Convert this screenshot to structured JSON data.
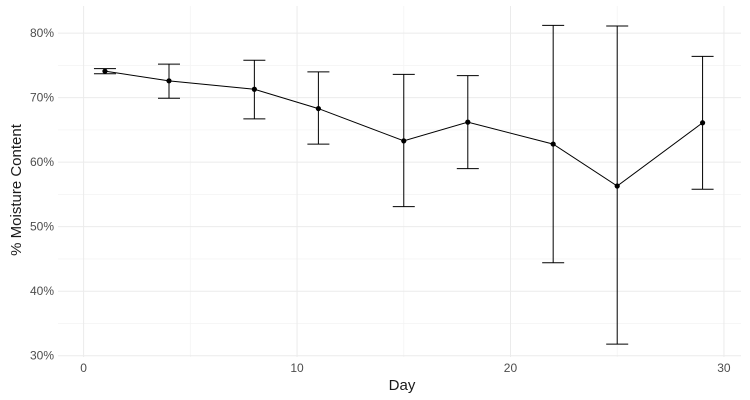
{
  "chart_data": {
    "type": "line",
    "title": "",
    "xlabel": "Day",
    "ylabel": "% Moisture Content",
    "xlim": [
      -1.2,
      30.8
    ],
    "ylim": [
      0.298,
      0.842
    ],
    "x_ticks": [
      0,
      10,
      20,
      30
    ],
    "y_ticks": [
      0.3,
      0.4,
      0.5,
      0.6,
      0.7,
      0.8
    ],
    "y_tick_labels": [
      "30%",
      "40%",
      "50%",
      "60%",
      "70%",
      "80%"
    ],
    "x_tick_labels": [
      "0",
      "10",
      "20",
      "30"
    ],
    "grid": true,
    "legend": "none",
    "series": [
      {
        "x": [
          1,
          4,
          8,
          11,
          15,
          18,
          22,
          25,
          29
        ],
        "y": [
          0.741,
          0.726,
          0.713,
          0.683,
          0.633,
          0.662,
          0.628,
          0.563,
          0.661
        ],
        "ymin": [
          0.737,
          0.699,
          0.667,
          0.628,
          0.531,
          0.59,
          0.444,
          0.318,
          0.558
        ],
        "ymax": [
          0.745,
          0.752,
          0.758,
          0.74,
          0.736,
          0.734,
          0.812,
          0.811,
          0.764
        ]
      }
    ],
    "colors": {
      "line": "#000000",
      "grid": "#ebebeb",
      "text": "#4d4d4d"
    }
  }
}
